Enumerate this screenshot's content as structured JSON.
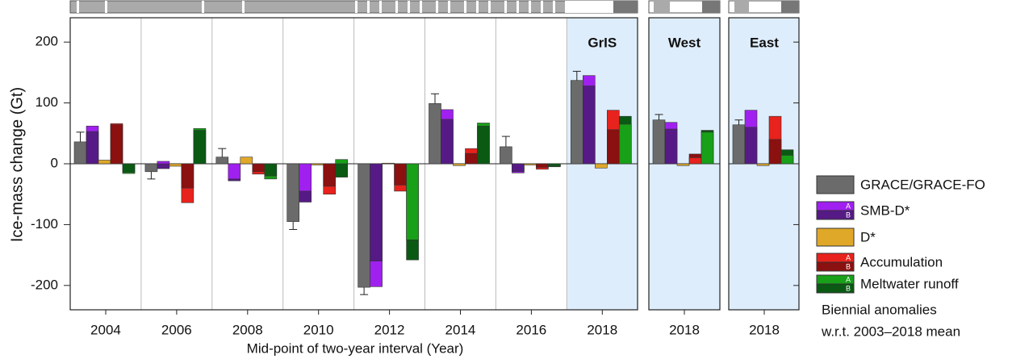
{
  "chart_data": {
    "type": "bar",
    "y_label": "Ice-mass change (Gt)",
    "x_label": "Mid-point of two-year interval (Year)",
    "categories": [
      "2004",
      "2006",
      "2008",
      "2010",
      "2012",
      "2014",
      "2016",
      "2018",
      "2018",
      "2018"
    ],
    "region_labels": [
      null,
      null,
      null,
      null,
      null,
      null,
      null,
      "GrIS",
      "West",
      "East"
    ],
    "ylim": [
      -240,
      240
    ],
    "yticks": [
      -200,
      -100,
      0,
      100,
      200
    ],
    "swatch_labels": [
      "A",
      "B"
    ],
    "notes": [
      "Biennial anomalies",
      "w.r.t. 2003–2018 mean"
    ],
    "series": [
      {
        "name": "GRACE/GRACE-FO",
        "color": "#6b6b6b",
        "values": [
          36,
          -13,
          11,
          -95,
          -203,
          99,
          28,
          137,
          72,
          64
        ],
        "errors": [
          16,
          12,
          14,
          13,
          12,
          16,
          17,
          15,
          9,
          8
        ]
      },
      {
        "name": "SMB-D*",
        "color_a": "#a020f0",
        "color_b": "#561a86",
        "values_a": [
          62,
          4,
          -25,
          -45,
          -202,
          89,
          -15,
          145,
          68,
          88
        ],
        "values_b": [
          53,
          -8,
          -28,
          -63,
          -160,
          73,
          -13,
          128,
          57,
          60
        ]
      },
      {
        "name": "D*",
        "color": "#e0a828",
        "values": [
          6,
          -4,
          11,
          -2,
          1,
          -3,
          -2,
          -7,
          -3,
          -3
        ]
      },
      {
        "name": "Accumulation",
        "color_a": "#e8221c",
        "color_b": "#8b1010",
        "values_a": [
          66,
          -64,
          -17,
          -50,
          -45,
          25,
          -9,
          88,
          10,
          78
        ],
        "values_b": [
          64,
          -40,
          -13,
          -37,
          -35,
          17,
          -6,
          56,
          16,
          40
        ]
      },
      {
        "name": "Meltwater runoff",
        "color_a": "#18a018",
        "color_b": "#0a5a14",
        "values_a": [
          -16,
          58,
          -25,
          7,
          -125,
          67,
          -5,
          65,
          52,
          14
        ],
        "values_b": [
          -14,
          55,
          -20,
          -22,
          -158,
          62,
          -4,
          78,
          55,
          23
        ]
      }
    ]
  }
}
